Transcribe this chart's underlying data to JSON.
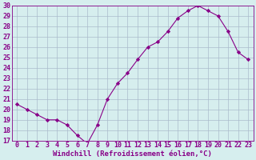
{
  "x": [
    0,
    1,
    2,
    3,
    4,
    5,
    6,
    7,
    8,
    9,
    10,
    11,
    12,
    13,
    14,
    15,
    16,
    17,
    18,
    19,
    20,
    21,
    22,
    23
  ],
  "y": [
    20.5,
    20.0,
    19.5,
    19.0,
    19.0,
    18.5,
    17.5,
    16.7,
    18.5,
    21.0,
    22.5,
    23.5,
    24.8,
    26.0,
    26.5,
    27.5,
    28.8,
    29.5,
    30.0,
    29.5,
    29.0,
    27.5,
    25.5,
    24.8
  ],
  "line_color": "#880088",
  "marker": "D",
  "marker_size": 2.2,
  "bg_color": "#d6eeee",
  "grid_color": "#aabbcc",
  "xlabel": "Windchill (Refroidissement éolien,°C)",
  "xlim": [
    -0.5,
    23.5
  ],
  "ylim": [
    17,
    30
  ],
  "yticks": [
    17,
    18,
    19,
    20,
    21,
    22,
    23,
    24,
    25,
    26,
    27,
    28,
    29,
    30
  ],
  "xticks": [
    0,
    1,
    2,
    3,
    4,
    5,
    6,
    7,
    8,
    9,
    10,
    11,
    12,
    13,
    14,
    15,
    16,
    17,
    18,
    19,
    20,
    21,
    22,
    23
  ],
  "font_color": "#880088",
  "xlabel_fontsize": 6.5,
  "tick_fontsize": 6.0
}
